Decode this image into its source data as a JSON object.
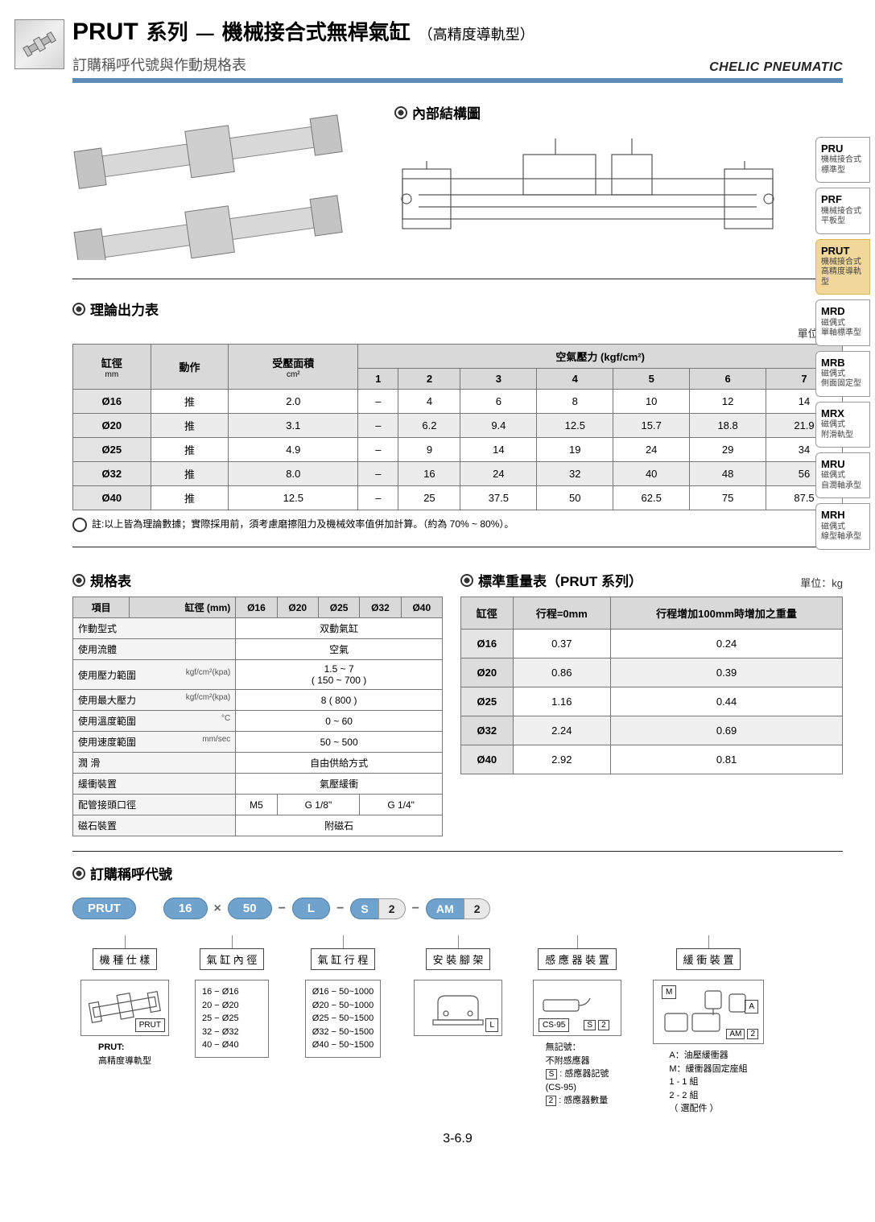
{
  "header": {
    "prut": "PRUT",
    "series": "系列",
    "dash": "—",
    "main": "機械接合式無桿氣缸",
    "sub": "（高精度導軌型）",
    "subtitle": "訂購稱呼代號與作動規格表",
    "brand": "CHELIC PNEUMATIC"
  },
  "struct_heading": "內部結構圖",
  "side_tabs": [
    {
      "code": "PRU",
      "d1": "機械接合式",
      "d2": "標準型"
    },
    {
      "code": "PRF",
      "d1": "機械接合式",
      "d2": "平板型"
    },
    {
      "code": "PRUT",
      "d1": "機械接合式",
      "d2": "高精度導軌型"
    },
    {
      "code": "MRD",
      "d1": "磁偶式",
      "d2": "單軸標準型"
    },
    {
      "code": "MRB",
      "d1": "磁偶式",
      "d2": "側面固定型"
    },
    {
      "code": "MRX",
      "d1": "磁偶式",
      "d2": "附滑軌型"
    },
    {
      "code": "MRU",
      "d1": "磁偶式",
      "d2": "自潤軸承型"
    },
    {
      "code": "MRH",
      "d1": "磁偶式",
      "d2": "線型軸承型"
    }
  ],
  "force": {
    "heading": "理論出力表",
    "unit": "單位：kgf",
    "col_bore": "缸徑",
    "col_bore_unit": "mm",
    "col_act": "動作",
    "col_area": "受壓面積",
    "col_area_unit": "cm²",
    "col_group": "空氣壓力 (kgf/cm²)",
    "pressures": [
      "1",
      "2",
      "3",
      "4",
      "5",
      "6",
      "7"
    ],
    "rows": [
      {
        "bore": "Ø16",
        "act": "推",
        "area": "2.0",
        "v": [
          "–",
          "4",
          "6",
          "8",
          "10",
          "12",
          "14"
        ]
      },
      {
        "bore": "Ø20",
        "act": "推",
        "area": "3.1",
        "v": [
          "–",
          "6.2",
          "9.4",
          "12.5",
          "15.7",
          "18.8",
          "21.9"
        ]
      },
      {
        "bore": "Ø25",
        "act": "推",
        "area": "4.9",
        "v": [
          "–",
          "9",
          "14",
          "19",
          "24",
          "29",
          "34"
        ]
      },
      {
        "bore": "Ø32",
        "act": "推",
        "area": "8.0",
        "v": [
          "–",
          "16",
          "24",
          "32",
          "40",
          "48",
          "56"
        ]
      },
      {
        "bore": "Ø40",
        "act": "推",
        "area": "12.5",
        "v": [
          "–",
          "25",
          "37.5",
          "50",
          "62.5",
          "75",
          "87.5"
        ]
      }
    ],
    "note": "註:以上皆為理論數據；實際採用前，須考慮磨擦阻力及機械效率值併加計算。（約為 70% ~ 80%）。"
  },
  "spec": {
    "heading": "規格表",
    "col_item": "項目",
    "col_bore": "缸徑 (mm)",
    "bores": [
      "Ø16",
      "Ø20",
      "Ø25",
      "Ø32",
      "Ø40"
    ],
    "rows": [
      {
        "label": "作動型式",
        "value": "双動氣缸"
      },
      {
        "label": "使用流體",
        "value": "空氣"
      },
      {
        "label": "使用壓力範圍",
        "sub": "kgf/cm²(kpa)",
        "value": "1.5 ~ 7\n( 150 ~ 700 )"
      },
      {
        "label": "使用最大壓力",
        "sub": "kgf/cm²(kpa)",
        "value": "8 ( 800 )"
      },
      {
        "label": "使用溫度範圍",
        "sub": "°C",
        "value": "0 ~ 60"
      },
      {
        "label": "使用速度範圍",
        "sub": "mm/sec",
        "value": "50 ~ 500"
      },
      {
        "label": "潤 滑",
        "value": "自由供給方式"
      },
      {
        "label": "緩衝裝置",
        "value": "氣壓緩衝"
      }
    ],
    "port_label": "配管接頭口徑",
    "port_m5": "M5",
    "port_g18": "G 1/8\"",
    "port_g14": "G 1/4\"",
    "magnet_label": "磁石裝置",
    "magnet_value": "附磁石"
  },
  "weight": {
    "heading": "標準重量表（PRUT 系列）",
    "unit": "單位：kg",
    "col_bore": "缸徑",
    "col_stroke0": "行程=0mm",
    "col_per100": "行程增加100mm時增加之重量",
    "rows": [
      {
        "bore": "Ø16",
        "s0": "0.37",
        "p": "0.24"
      },
      {
        "bore": "Ø20",
        "s0": "0.86",
        "p": "0.39"
      },
      {
        "bore": "Ø25",
        "s0": "1.16",
        "p": "0.44"
      },
      {
        "bore": "Ø32",
        "s0": "2.24",
        "p": "0.69"
      },
      {
        "bore": "Ø40",
        "s0": "2.92",
        "p": "0.81"
      }
    ]
  },
  "order": {
    "heading": "訂購稱呼代號",
    "pills": {
      "model": "PRUT",
      "bore": "16",
      "x": "×",
      "stroke": "50",
      "dash": "−",
      "mount": "L",
      "sensor_s": "S",
      "sensor_n": "2",
      "buf_a": "AM",
      "buf_n": "2"
    },
    "labels": {
      "model": "機 種 仕 樣",
      "bore": "氣 缸 內 徑",
      "stroke": "氣 缸 行 程",
      "mount": "安 裝 腳 架",
      "sensor": "感 應 器 裝 置",
      "buffer": "緩 衝 裝 置"
    },
    "model_opt_tag": "PRUT",
    "model_opt_name": "PRUT:",
    "model_opt_desc": "高精度導軌型",
    "bore_opts": [
      "16  −  Ø16",
      "20  −  Ø20",
      "25  −  Ø25",
      "32  −  Ø32",
      "40  −  Ø40"
    ],
    "stroke_opts": [
      "Ø16 − 50~1000",
      "Ø20 − 50~1000",
      "Ø25 − 50~1500",
      "Ø32 − 50~1500",
      "Ø40 − 50~1500"
    ],
    "mount_tag": "L",
    "sensor_tag_cs": "CS-95",
    "sensor_tag_s": "S",
    "sensor_tag_2": "2",
    "sensor_notes": [
      "無記號：",
      "不附感應器",
      "S : 感應器記號",
      "      (CS-95)",
      "2 : 感應器數量"
    ],
    "buffer_tag_m": "M",
    "buffer_tag_a": "A",
    "buffer_tag_am": "AM",
    "buffer_tag_2": "2",
    "buffer_notes": [
      "A：油壓緩衝器",
      "M：緩衝器固定座組",
      "          1 - 1  組",
      "          2 - 2  組",
      "       （ 選配件 ）"
    ]
  },
  "page_num": "3-6.9"
}
